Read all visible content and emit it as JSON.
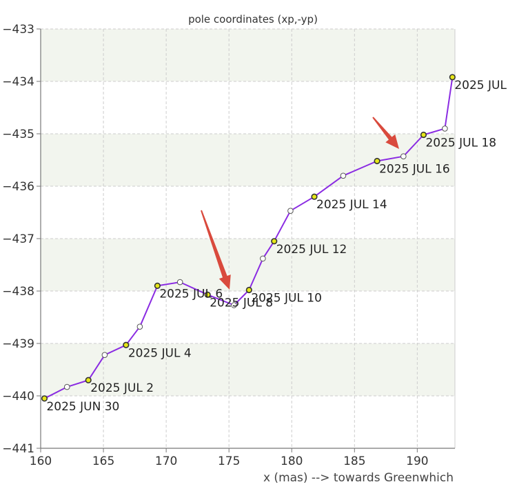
{
  "chart_data": {
    "type": "line",
    "title": "pole coordinates (xp,-yp)",
    "xlabel": "x (mas) --> towards Greenwhich",
    "ylabel": "",
    "xlim": [
      160,
      193
    ],
    "ylim": [
      -441,
      -433
    ],
    "x_ticks": [
      160,
      165,
      170,
      175,
      180,
      185,
      190
    ],
    "y_ticks": [
      -441,
      -440,
      -439,
      -438,
      -437,
      -436,
      -435,
      -434,
      -433
    ],
    "grid": true,
    "series_color": "#8a2be2",
    "labeled_marker_color": "#e6e619",
    "open_marker_color": "#ffffff",
    "arrow_color": "#d94a3d",
    "band_color": "#f2f5ee",
    "points": [
      {
        "x": 160.3,
        "y": -440.05,
        "label": "2025 JUN 30"
      },
      {
        "x": 162.1,
        "y": -439.83,
        "label": ""
      },
      {
        "x": 163.8,
        "y": -439.7,
        "label": "2025 JUL 2"
      },
      {
        "x": 165.1,
        "y": -439.22,
        "label": ""
      },
      {
        "x": 166.8,
        "y": -439.03,
        "label": "2025 JUL 4"
      },
      {
        "x": 167.9,
        "y": -438.68,
        "label": ""
      },
      {
        "x": 169.3,
        "y": -437.9,
        "label": "2025 JUL 6"
      },
      {
        "x": 171.1,
        "y": -437.83,
        "label": ""
      },
      {
        "x": 173.3,
        "y": -438.07,
        "label": "2025 JUL 8"
      },
      {
        "x": 175.4,
        "y": -438.27,
        "label": ""
      },
      {
        "x": 176.6,
        "y": -437.98,
        "label": "2025 JUL 10"
      },
      {
        "x": 177.7,
        "y": -437.38,
        "label": ""
      },
      {
        "x": 178.6,
        "y": -437.05,
        "label": "2025 JUL 12"
      },
      {
        "x": 179.9,
        "y": -436.47,
        "label": ""
      },
      {
        "x": 181.8,
        "y": -436.2,
        "label": "2025 JUL 14"
      },
      {
        "x": 184.1,
        "y": -435.8,
        "label": ""
      },
      {
        "x": 186.8,
        "y": -435.52,
        "label": "2025 JUL 16"
      },
      {
        "x": 188.9,
        "y": -435.43,
        "label": ""
      },
      {
        "x": 190.5,
        "y": -435.02,
        "label": "2025 JUL 18"
      },
      {
        "x": 192.2,
        "y": -434.9,
        "label": ""
      },
      {
        "x": 192.8,
        "y": -433.92,
        "label": "2025 JUL"
      }
    ]
  }
}
